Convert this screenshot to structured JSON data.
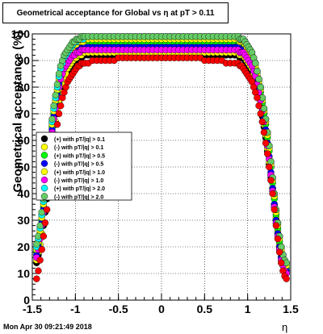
{
  "title": "Geometrical acceptance for Global vs  η at pT > 0.11",
  "footer": "Mon Apr 30 09:21:49 2018",
  "chart_data": {
    "type": "scatter",
    "xlabel": "η",
    "ylabel": "Geometrical acceptance (%)",
    "xlim": [
      -1.5,
      1.5
    ],
    "ylim": [
      0,
      100
    ],
    "xticks": [
      "-1.5",
      "-1",
      "-0.5",
      "0",
      "0.5",
      "1",
      "1.5"
    ],
    "yticks": [
      "0",
      "10",
      "20",
      "30",
      "40",
      "50",
      "60",
      "70",
      "80",
      "90",
      "100"
    ],
    "grid": true,
    "legend_position": "left-middle",
    "legend": [
      {
        "label": "(+) with pT/|q| > 0.1",
        "color": "#000000"
      },
      {
        "label": "(-) with pT/|q| > 0.1",
        "color": "#ffff00"
      },
      {
        "label": "(+) with pT/|q| > 0.5",
        "color": "#00ff00"
      },
      {
        "label": "(-) with pT/|q| > 0.5",
        "color": "#0000ff"
      },
      {
        "label": "(+) with pT/|q| > 1.0",
        "color": "#ffff00"
      },
      {
        "label": "(-) with pT/|q| > 1.0",
        "color": "#ff00ff"
      },
      {
        "label": "(+) with pT/|q| > 2.0",
        "color": "#00ffff"
      },
      {
        "label": "(-) with pT/|q| > 2.0",
        "color": "#66cc66"
      }
    ],
    "x": [
      -1.45,
      -1.43,
      -1.41,
      -1.39,
      -1.37,
      -1.35,
      -1.33,
      -1.31,
      -1.29,
      -1.27,
      -1.25,
      -1.23,
      -1.21,
      -1.19,
      -1.17,
      -1.15,
      -1.13,
      -1.11,
      -1.09,
      -1.07,
      -1.05,
      -1.03,
      -1.01,
      -0.99,
      -0.97,
      -0.95,
      -0.93,
      -0.91,
      -0.89,
      -0.85,
      -0.8,
      -0.75,
      -0.7,
      -0.65,
      -0.6,
      -0.55,
      -0.5,
      -0.45,
      -0.4,
      -0.35,
      -0.3,
      -0.25,
      -0.2,
      -0.15,
      -0.1,
      -0.05,
      0.0,
      0.05,
      0.1,
      0.15,
      0.2,
      0.25,
      0.3,
      0.35,
      0.4,
      0.45,
      0.5,
      0.55,
      0.6,
      0.65,
      0.7,
      0.75,
      0.8,
      0.85,
      0.89,
      0.91,
      0.93,
      0.95,
      0.97,
      0.99,
      1.01,
      1.03,
      1.05,
      1.07,
      1.09,
      1.11,
      1.13,
      1.15,
      1.17,
      1.19,
      1.21,
      1.23,
      1.25,
      1.27,
      1.29,
      1.31,
      1.33,
      1.35,
      1.37,
      1.39,
      1.41,
      1.43,
      1.45
    ],
    "series": [
      {
        "color": "#000000",
        "values": [
          14,
          17,
          20,
          24,
          28,
          33,
          38,
          44,
          50,
          56,
          61,
          66,
          70,
          74,
          77,
          80,
          82,
          84,
          86,
          87,
          88,
          89,
          90,
          90,
          91,
          91,
          91,
          92,
          92,
          92,
          92,
          92,
          92,
          92,
          92,
          92,
          92,
          92,
          92,
          92,
          92,
          92,
          92,
          92,
          92,
          92,
          92,
          92,
          92,
          92,
          92,
          92,
          92,
          92,
          92,
          92,
          92,
          92,
          92,
          92,
          92,
          92,
          92,
          92,
          92,
          91,
          91,
          91,
          90,
          89,
          88,
          87,
          86,
          84,
          82,
          79,
          76,
          73,
          69,
          65,
          61,
          56,
          51,
          46,
          41,
          35,
          30,
          25,
          20,
          16,
          13,
          11,
          10
        ]
      },
      {
        "color": "#ffff00",
        "values": [
          15,
          18,
          21,
          25,
          29,
          34,
          39,
          45,
          51,
          57,
          62,
          67,
          71,
          75,
          78,
          81,
          83,
          85,
          87,
          88,
          89,
          90,
          91,
          91,
          92,
          92,
          92,
          93,
          93,
          93,
          93,
          93,
          93,
          93,
          93,
          93,
          93,
          93,
          93,
          93,
          93,
          93,
          93,
          93,
          93,
          93,
          93,
          93,
          93,
          93,
          93,
          93,
          93,
          93,
          93,
          93,
          93,
          93,
          93,
          93,
          93,
          93,
          93,
          93,
          93,
          92,
          92,
          92,
          91,
          90,
          89,
          88,
          87,
          85,
          83,
          80,
          77,
          74,
          70,
          66,
          62,
          57,
          52,
          47,
          42,
          36,
          31,
          26,
          21,
          17,
          14,
          12,
          11
        ]
      },
      {
        "color": "#00ff00",
        "values": [
          18,
          21,
          25,
          30,
          35,
          41,
          47,
          53,
          59,
          65,
          70,
          74,
          78,
          82,
          85,
          87,
          89,
          90,
          91,
          92,
          93,
          94,
          95,
          95,
          96,
          96,
          96,
          97,
          97,
          97,
          97,
          97,
          97,
          97,
          97,
          97,
          97,
          97,
          97,
          97,
          97,
          97,
          97,
          97,
          97,
          97,
          97,
          97,
          97,
          97,
          97,
          97,
          97,
          97,
          97,
          97,
          97,
          97,
          97,
          97,
          97,
          97,
          97,
          97,
          97,
          96,
          96,
          96,
          95,
          94,
          93,
          92,
          91,
          89,
          87,
          84,
          81,
          78,
          74,
          70,
          66,
          61,
          56,
          50,
          44,
          38,
          32,
          27,
          22,
          18,
          15,
          13,
          12
        ]
      },
      {
        "color": "#0000ff",
        "values": [
          17,
          20,
          24,
          29,
          34,
          40,
          46,
          52,
          58,
          64,
          69,
          73,
          77,
          81,
          84,
          86,
          88,
          89,
          90,
          91,
          92,
          93,
          93,
          94,
          94,
          94,
          95,
          95,
          95,
          95,
          95,
          95,
          95,
          95,
          95,
          95,
          95,
          95,
          95,
          95,
          95,
          95,
          95,
          95,
          95,
          95,
          95,
          95,
          95,
          95,
          95,
          95,
          95,
          95,
          95,
          95,
          95,
          95,
          95,
          95,
          95,
          95,
          95,
          95,
          95,
          94,
          94,
          94,
          93,
          92,
          91,
          90,
          89,
          87,
          85,
          82,
          79,
          76,
          72,
          68,
          64,
          59,
          54,
          48,
          42,
          36,
          30,
          25,
          20,
          16,
          14,
          12,
          11
        ]
      },
      {
        "color": "#ffff00",
        "values": [
          19,
          22,
          26,
          31,
          36,
          42,
          48,
          54,
          60,
          66,
          71,
          75,
          79,
          83,
          86,
          88,
          90,
          91,
          92,
          93,
          94,
          95,
          96,
          96,
          97,
          97,
          97,
          97,
          98,
          98,
          98,
          98,
          98,
          98,
          98,
          98,
          98,
          98,
          98,
          98,
          98,
          98,
          98,
          98,
          98,
          98,
          98,
          98,
          98,
          98,
          98,
          98,
          98,
          98,
          98,
          98,
          98,
          98,
          98,
          98,
          98,
          98,
          98,
          98,
          98,
          97,
          97,
          97,
          96,
          95,
          94,
          93,
          92,
          90,
          88,
          85,
          82,
          79,
          75,
          71,
          67,
          62,
          57,
          51,
          45,
          39,
          33,
          28,
          23,
          19,
          16,
          14,
          13
        ]
      },
      {
        "color": "#ff00ff",
        "values": [
          16,
          19,
          23,
          28,
          33,
          39,
          45,
          51,
          57,
          63,
          68,
          72,
          76,
          80,
          83,
          85,
          87,
          88,
          89,
          90,
          91,
          92,
          92,
          93,
          93,
          93,
          94,
          94,
          94,
          94,
          94,
          94,
          94,
          94,
          94,
          94,
          94,
          94,
          94,
          94,
          94,
          94,
          94,
          94,
          94,
          94,
          94,
          94,
          94,
          94,
          94,
          94,
          94,
          94,
          94,
          94,
          94,
          94,
          94,
          94,
          94,
          94,
          94,
          94,
          94,
          93,
          93,
          93,
          92,
          91,
          90,
          89,
          88,
          86,
          84,
          81,
          78,
          75,
          71,
          67,
          63,
          58,
          53,
          47,
          41,
          35,
          29,
          24,
          19,
          15,
          13,
          11,
          10
        ]
      },
      {
        "color": "#00ffff",
        "values": [
          20,
          23,
          27,
          32,
          37,
          43,
          49,
          55,
          61,
          67,
          72,
          76,
          80,
          84,
          87,
          89,
          91,
          92,
          93,
          94,
          95,
          96,
          97,
          97,
          98,
          98,
          98,
          98,
          99,
          99,
          99,
          99,
          99,
          99,
          99,
          99,
          99,
          99,
          99,
          99,
          99,
          99,
          99,
          99,
          99,
          99,
          99,
          99,
          99,
          99,
          99,
          99,
          99,
          99,
          99,
          99,
          99,
          99,
          99,
          99,
          99,
          99,
          99,
          99,
          99,
          98,
          98,
          98,
          97,
          96,
          95,
          94,
          93,
          91,
          89,
          86,
          83,
          80,
          76,
          72,
          68,
          63,
          58,
          52,
          46,
          40,
          34,
          29,
          24,
          20,
          17,
          15,
          14
        ]
      },
      {
        "color": "#66cc66",
        "values": [
          21,
          24,
          28,
          33,
          38,
          44,
          50,
          56,
          62,
          68,
          73,
          77,
          81,
          85,
          88,
          90,
          92,
          93,
          94,
          95,
          96,
          97,
          97,
          98,
          98,
          98,
          99,
          99,
          99,
          99,
          99,
          99,
          99,
          99,
          99,
          99,
          99,
          99,
          99,
          99,
          99,
          99,
          99,
          99,
          99,
          99,
          99,
          99,
          99,
          99,
          99,
          99,
          99,
          99,
          99,
          99,
          99,
          99,
          99,
          99,
          99,
          99,
          99,
          99,
          99,
          98,
          98,
          98,
          97,
          96,
          95,
          94,
          93,
          91,
          89,
          86,
          83,
          80,
          76,
          72,
          68,
          63,
          58,
          52,
          46,
          40,
          34,
          29,
          24,
          20,
          17,
          15,
          14
        ]
      },
      {
        "color": "#ff0000",
        "values": [
          8,
          11,
          15,
          19,
          24,
          29,
          34,
          40,
          46,
          52,
          57,
          62,
          66,
          70,
          73,
          76,
          78,
          80,
          82,
          83,
          84,
          85,
          86,
          87,
          88,
          88,
          89,
          89,
          89,
          89,
          90,
          90,
          90,
          90,
          90,
          90,
          91,
          91,
          91,
          91,
          91,
          91,
          91,
          91,
          91,
          91,
          91,
          91,
          91,
          91,
          91,
          91,
          91,
          91,
          91,
          91,
          90,
          90,
          90,
          90,
          90,
          89,
          89,
          89,
          89,
          88,
          88,
          87,
          86,
          85,
          84,
          83,
          82,
          80,
          78,
          76,
          73,
          70,
          67,
          63,
          59,
          55,
          50,
          45,
          40,
          34,
          28,
          23,
          18,
          14,
          11,
          9,
          8
        ]
      }
    ]
  }
}
